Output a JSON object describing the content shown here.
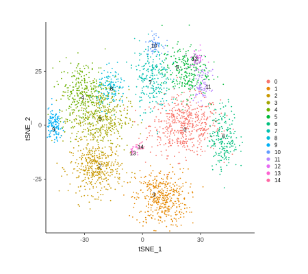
{
  "chart_data": {
    "type": "scatter",
    "xlabel": "tSNE_1",
    "ylabel": "tSNE_2",
    "xlim": [
      -50,
      58
    ],
    "ylim": [
      -50,
      48
    ],
    "x_ticks": [
      -30,
      0,
      30
    ],
    "y_ticks": [
      25,
      0,
      -25
    ],
    "grid": false,
    "legend_position": "right",
    "clusters": [
      {
        "name": "0",
        "color": "#F8766D",
        "center": [
          22,
          0
        ],
        "spread": [
          12,
          9
        ],
        "n": 520
      },
      {
        "name": "1",
        "color": "#E58700",
        "center": [
          10,
          -34
        ],
        "spread": [
          9,
          9
        ],
        "n": 420
      },
      {
        "name": "2",
        "color": "#C99800",
        "center": [
          -24,
          -20
        ],
        "spread": [
          9,
          8
        ],
        "n": 400
      },
      {
        "name": "3",
        "color": "#A3A500",
        "center": [
          -22,
          3
        ],
        "spread": [
          10,
          9
        ],
        "n": 380
      },
      {
        "name": "4",
        "color": "#6BB100",
        "center": [
          -30,
          15
        ],
        "spread": [
          9,
          10
        ],
        "n": 320
      },
      {
        "name": "5",
        "color": "#00BA38",
        "center": [
          22,
          25
        ],
        "spread": [
          8,
          8
        ],
        "n": 260
      },
      {
        "name": "6",
        "color": "#00BF7D",
        "center": [
          42,
          -6
        ],
        "spread": [
          5,
          10
        ],
        "n": 200
      },
      {
        "name": "7",
        "color": "#00C0AF",
        "center": [
          5,
          22
        ],
        "spread": [
          6,
          11
        ],
        "n": 230
      },
      {
        "name": "8",
        "color": "#00BCD8",
        "center": [
          -16,
          17
        ],
        "spread": [
          5,
          6
        ],
        "n": 130
      },
      {
        "name": "9",
        "color": "#00B0F6",
        "center": [
          -46,
          0
        ],
        "spread": [
          3,
          5
        ],
        "n": 130
      },
      {
        "name": "10",
        "color": "#619CFF",
        "center": [
          6,
          38
        ],
        "spread": [
          3,
          3
        ],
        "n": 60
      },
      {
        "name": "11",
        "color": "#B983FF",
        "center": [
          31,
          18
        ],
        "spread": [
          3,
          5
        ],
        "n": 80
      },
      {
        "name": "12",
        "color": "#E76BF3",
        "center": [
          28,
          31
        ],
        "spread": [
          3,
          3
        ],
        "n": 50
      },
      {
        "name": "13",
        "color": "#FD61D1",
        "center": [
          -4,
          -12
        ],
        "spread": [
          2,
          2
        ],
        "n": 20
      },
      {
        "name": "14",
        "color": "#FF67A4",
        "center": [
          -1,
          -10
        ],
        "spread": [
          1.5,
          1.5
        ],
        "n": 12
      }
    ],
    "cluster_labels": [
      {
        "text": "0",
        "x": 22,
        "y": -2
      },
      {
        "text": "1",
        "x": 6,
        "y": -32
      },
      {
        "text": "2",
        "x": -22,
        "y": -19
      },
      {
        "text": "3",
        "x": -22,
        "y": 3
      },
      {
        "text": "4",
        "x": -31,
        "y": 13
      },
      {
        "text": "5",
        "x": 18,
        "y": 27
      },
      {
        "text": "6",
        "x": 42,
        "y": -5
      },
      {
        "text": "7",
        "x": 4,
        "y": 20
      },
      {
        "text": "8",
        "x": -16,
        "y": 17
      },
      {
        "text": "9",
        "x": -46,
        "y": -2
      },
      {
        "text": "10",
        "x": 6,
        "y": 37
      },
      {
        "text": "11",
        "x": 34,
        "y": 18
      },
      {
        "text": "12",
        "x": 27,
        "y": 31
      },
      {
        "text": "13",
        "x": -5,
        "y": -13
      },
      {
        "text": "14",
        "x": -1,
        "y": -10
      }
    ]
  }
}
